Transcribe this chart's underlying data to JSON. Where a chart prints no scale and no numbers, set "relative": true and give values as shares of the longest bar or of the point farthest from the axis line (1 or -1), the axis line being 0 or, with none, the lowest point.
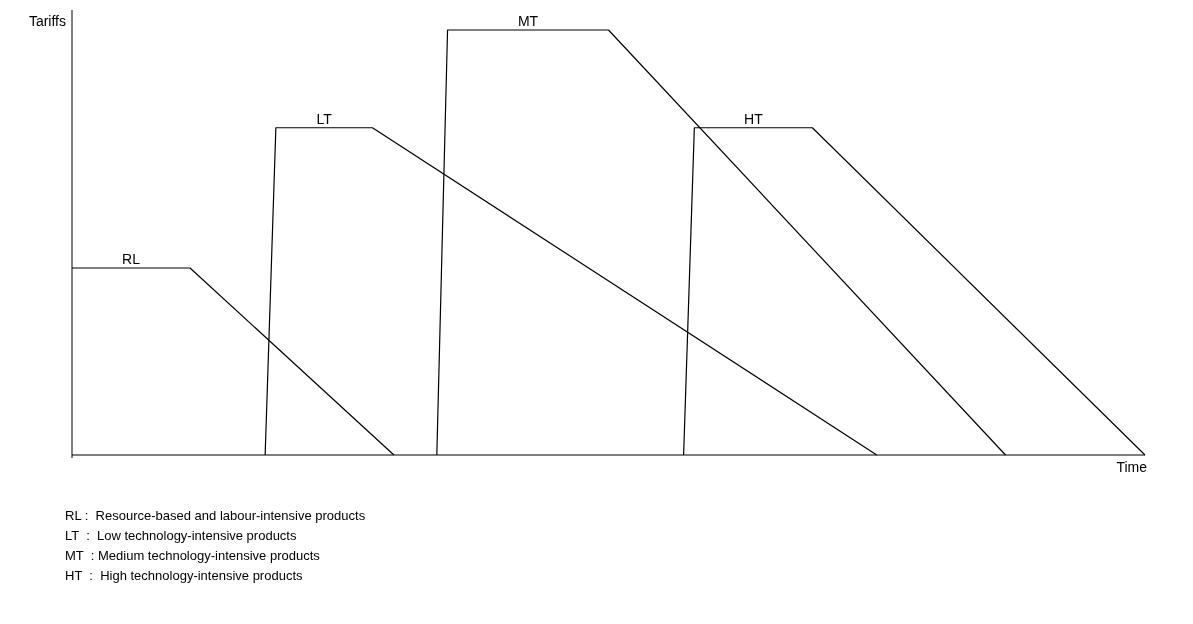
{
  "chart_data": {
    "type": "line",
    "relative": true,
    "xlabel": "Time",
    "ylabel": "Tariffs",
    "marker": "none",
    "line_style": "solid",
    "categories": [
      null,
      null,
      null,
      null,
      null,
      null,
      null,
      null,
      null,
      null,
      null,
      null,
      null,
      null,
      null,
      null,
      null,
      null,
      null,
      null,
      null,
      null,
      null,
      null,
      null,
      null,
      null,
      null,
      null,
      null,
      null,
      null,
      null,
      null,
      null,
      null,
      null,
      null,
      null,
      null,
      null,
      null,
      null,
      null,
      null,
      null,
      null,
      null,
      null,
      null,
      null,
      null,
      null,
      null,
      null,
      null,
      null,
      null,
      null,
      null,
      null,
      null,
      null,
      null,
      null,
      null,
      null,
      null,
      null,
      null,
      null,
      null,
      null,
      null,
      null,
      null,
      null,
      null,
      null,
      null,
      null,
      null,
      null,
      null,
      null,
      null,
      null,
      null,
      null,
      null,
      null,
      null,
      null,
      null,
      null,
      null,
      null,
      null,
      null,
      null,
      null
    ],
    "series": [
      {
        "name": "RL",
        "color": "#000000",
        "values": [
          0.44,
          null,
          null,
          null,
          null,
          null,
          null,
          null,
          null,
          null,
          null,
          0.44,
          null,
          null,
          null,
          null,
          null,
          null,
          null,
          null,
          null,
          null,
          null,
          null,
          null,
          null,
          null,
          null,
          null,
          null,
          0,
          null,
          null,
          null,
          null,
          null,
          null,
          null,
          null,
          null,
          null,
          null,
          null,
          null,
          null,
          null,
          null,
          null,
          null,
          null,
          null,
          null,
          null,
          null,
          null,
          null,
          null,
          null,
          null,
          null,
          null,
          null,
          null,
          null,
          null,
          null,
          null,
          null,
          null,
          null,
          null,
          null,
          null,
          null,
          null,
          null,
          null,
          null,
          null,
          null,
          null,
          null,
          null,
          null,
          null,
          null,
          null,
          null,
          null,
          null,
          null,
          null,
          null,
          null,
          null,
          null,
          null,
          null,
          null,
          null,
          null
        ]
      },
      {
        "name": "LT",
        "color": "#000000",
        "values": [
          null,
          null,
          null,
          null,
          null,
          null,
          null,
          null,
          null,
          null,
          null,
          null,
          null,
          null,
          null,
          null,
          null,
          null,
          0,
          0.77,
          null,
          null,
          null,
          null,
          null,
          null,
          null,
          null,
          0.77,
          null,
          null,
          null,
          null,
          null,
          null,
          null,
          null,
          null,
          null,
          null,
          null,
          null,
          null,
          null,
          null,
          null,
          null,
          null,
          null,
          null,
          null,
          null,
          null,
          null,
          null,
          null,
          null,
          null,
          null,
          null,
          null,
          null,
          null,
          null,
          null,
          null,
          null,
          null,
          null,
          null,
          null,
          null,
          null,
          null,
          null,
          0,
          null,
          null,
          null,
          null,
          null,
          null,
          null,
          null,
          null,
          null,
          null,
          null,
          null,
          null,
          null,
          null,
          null,
          null,
          null,
          null,
          null,
          null,
          null,
          null,
          null
        ]
      },
      {
        "name": "MT",
        "color": "#000000",
        "values": [
          null,
          null,
          null,
          null,
          null,
          null,
          null,
          null,
          null,
          null,
          null,
          null,
          null,
          null,
          null,
          null,
          null,
          null,
          null,
          null,
          null,
          null,
          null,
          null,
          null,
          null,
          null,
          null,
          null,
          null,
          null,
          null,
          null,
          null,
          0,
          1,
          null,
          null,
          null,
          null,
          null,
          null,
          null,
          null,
          null,
          null,
          null,
          null,
          null,
          null,
          1,
          null,
          null,
          null,
          null,
          null,
          null,
          null,
          null,
          null,
          null,
          null,
          null,
          null,
          null,
          null,
          null,
          null,
          null,
          null,
          null,
          null,
          null,
          null,
          null,
          null,
          null,
          null,
          null,
          null,
          null,
          null,
          null,
          null,
          null,
          null,
          null,
          0,
          null,
          null,
          null,
          null,
          null,
          null,
          null,
          null,
          null,
          null,
          null,
          null,
          null
        ]
      },
      {
        "name": "HT",
        "color": "#000000",
        "values": [
          null,
          null,
          null,
          null,
          null,
          null,
          null,
          null,
          null,
          null,
          null,
          null,
          null,
          null,
          null,
          null,
          null,
          null,
          null,
          null,
          null,
          null,
          null,
          null,
          null,
          null,
          null,
          null,
          null,
          null,
          null,
          null,
          null,
          null,
          null,
          null,
          null,
          null,
          null,
          null,
          null,
          null,
          null,
          null,
          null,
          null,
          null,
          null,
          null,
          null,
          null,
          null,
          null,
          null,
          null,
          null,
          null,
          0,
          0.77,
          null,
          null,
          null,
          null,
          null,
          null,
          null,
          null,
          null,
          null,
          0.77,
          null,
          null,
          null,
          null,
          null,
          null,
          null,
          null,
          null,
          null,
          null,
          null,
          null,
          null,
          null,
          null,
          null,
          null,
          null,
          null,
          null,
          null,
          null,
          null,
          null,
          null,
          null,
          null,
          null,
          null,
          0
        ]
      }
    ],
    "annotations": [
      "RL :  Resource-based and labour-intensive products",
      "LT  :  Low technology-intensive products",
      "MT  : Medium technology-intensive products",
      "HT  :  High technology-intensive products"
    ]
  }
}
